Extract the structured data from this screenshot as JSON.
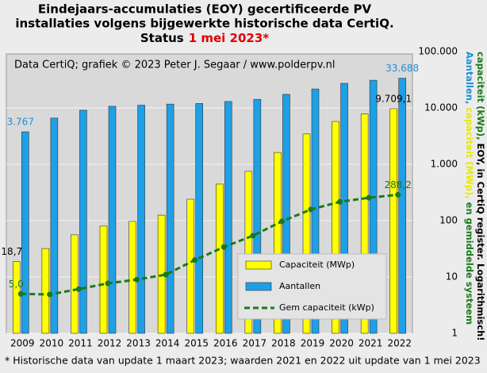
{
  "chart_data": {
    "type": "bar_line",
    "title": [
      "Eindejaars-accumulaties (EOY) gecertificeerde PV",
      "installaties volgens bijgewerkte historische data CertiQ."
    ],
    "status_label": "Status",
    "status_date": "1 mei 2023*",
    "source": "Data CertiQ; grafiek © 2023 Peter J. Segaar / www.polderpv.nl",
    "footnote": "* Historische data van update 1 maart 2023; waarden 2021 en 2022 uit update van 1 mei 2023",
    "y_axis_label": [
      [
        {
          "text": "Aantallen,",
          "color": "#1f8fd6"
        },
        {
          "text": "capaciteit (MWp),",
          "color": "#e8e800"
        },
        {
          "text": "en gemiddelde systeem",
          "color": "#1a7a1a"
        }
      ],
      [
        {
          "text": "capaciteit (kWp),",
          "color": "#1a7a1a"
        },
        {
          "text": "EOY, in CertiQ register. Logarithmisch!",
          "color": "#000000"
        }
      ]
    ],
    "categories": [
      "2009",
      "2010",
      "2011",
      "2012",
      "2013",
      "2014",
      "2015",
      "2016",
      "2017",
      "2018",
      "2019",
      "2020",
      "2021",
      "2022"
    ],
    "series": [
      {
        "name": "Capaciteit (MWp)",
        "kind": "bar",
        "color": "#ffff00",
        "label_color": "#000000",
        "values": [
          18.7,
          32,
          56,
          80,
          97,
          125,
          240,
          445,
          750,
          1620,
          3450,
          5750,
          7800,
          9709.1
        ],
        "value_labels": [
          "18,7",
          null,
          null,
          null,
          null,
          null,
          null,
          null,
          null,
          null,
          null,
          null,
          null,
          "9.709,1"
        ]
      },
      {
        "name": "Aantallen",
        "kind": "bar",
        "color": "#1ea0e6",
        "label_color": "#1f8fd6",
        "values": [
          3767,
          6600,
          9100,
          10700,
          11200,
          11700,
          12000,
          13000,
          14200,
          17400,
          21700,
          27300,
          31000,
          33688
        ],
        "value_labels": [
          "3.767",
          null,
          null,
          null,
          null,
          null,
          null,
          null,
          null,
          null,
          null,
          null,
          null,
          "33.688"
        ]
      },
      {
        "name": "Gem capaciteit (kWp)",
        "kind": "line",
        "color": "#1a7a1a",
        "label_color": "#1a7a1a",
        "values": [
          5.0,
          4.9,
          6.1,
          7.7,
          9.0,
          11,
          20,
          34,
          54,
          97,
          158,
          216,
          255,
          288.2
        ],
        "value_labels": [
          "5,0",
          null,
          null,
          null,
          null,
          null,
          null,
          null,
          null,
          null,
          null,
          null,
          null,
          "288,2"
        ]
      }
    ],
    "ylim": [
      1,
      100000
    ],
    "log_y": true,
    "yticks": [
      1,
      10,
      100,
      {
        "value": 1000,
        "label": "1.000"
      },
      {
        "value": 10000,
        "label": "10.000"
      },
      {
        "value": 100000,
        "label": "100.000"
      }
    ],
    "grid": true,
    "legend": "lower right"
  }
}
